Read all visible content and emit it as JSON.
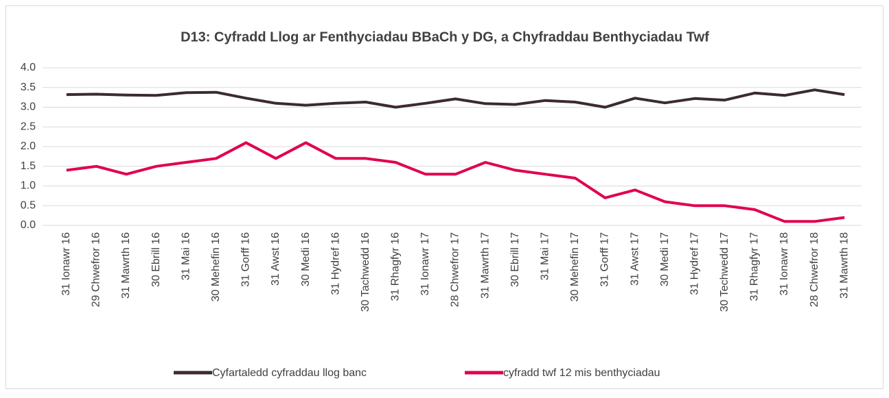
{
  "chart_data": {
    "type": "line",
    "title": "D13: Cyfradd Llog ar Fenthyciadau BBaCh y DG, a Chyfraddau Benthyciadau Twf",
    "categories": [
      "31 Ionawr 16",
      "29 Chwefror 16",
      "31 Mawrth 16",
      "30 Ebrill 16",
      "31 Mai 16",
      "30 Mehefin 16",
      "31 Gorff 16",
      "31 Awst 16",
      "30 Medi 16",
      "31 Hydref 16",
      "30 Tachwedd 16",
      "31 Rhagfyr 16",
      "31 Ionawr 17",
      "28 Chwefror 17",
      "31 Mawrth 17",
      "30 Ebrill 17",
      "31 Mai 17",
      "30 Mehefin 17",
      "31 Gorff 17",
      "31 Awst 17",
      "30 Medi 17",
      "31 Hydref 17",
      "30 Techwedd 17",
      "31 Rhagfyr 17",
      "31 Ionawr 18",
      "28 Chwefror 18",
      "31 Mawrth 18"
    ],
    "series": [
      {
        "name": "Cyfartaledd cyfraddau llog banc",
        "color": "#3b2b31",
        "values": [
          3.32,
          3.33,
          3.31,
          3.3,
          3.37,
          3.38,
          3.23,
          3.1,
          3.05,
          3.1,
          3.13,
          3.0,
          3.1,
          3.21,
          3.09,
          3.07,
          3.17,
          3.13,
          3.0,
          3.23,
          3.11,
          3.22,
          3.18,
          3.36,
          3.3,
          3.44,
          3.32
        ]
      },
      {
        "name": "cyfradd twf 12 mis benthyciadau",
        "color": "#e0004d",
        "values": [
          1.4,
          1.5,
          1.3,
          1.5,
          1.6,
          1.7,
          2.1,
          1.7,
          2.1,
          1.7,
          1.7,
          1.6,
          1.3,
          1.3,
          1.6,
          1.4,
          1.3,
          1.2,
          0.7,
          0.9,
          0.6,
          0.5,
          0.5,
          0.4,
          0.1,
          0.1,
          0.2
        ]
      }
    ],
    "ylim": [
      0,
      4
    ],
    "yticks": [
      {
        "value": 0,
        "label": "0.0"
      },
      0.5,
      {
        "value": 1,
        "label": "1.0"
      },
      1.5,
      {
        "value": 2,
        "label": "2.0"
      },
      2.5,
      {
        "value": 3,
        "label": "3.0"
      },
      3.5,
      {
        "value": 4,
        "label": "4.0"
      }
    ],
    "grid": true,
    "legend": "bottom"
  }
}
